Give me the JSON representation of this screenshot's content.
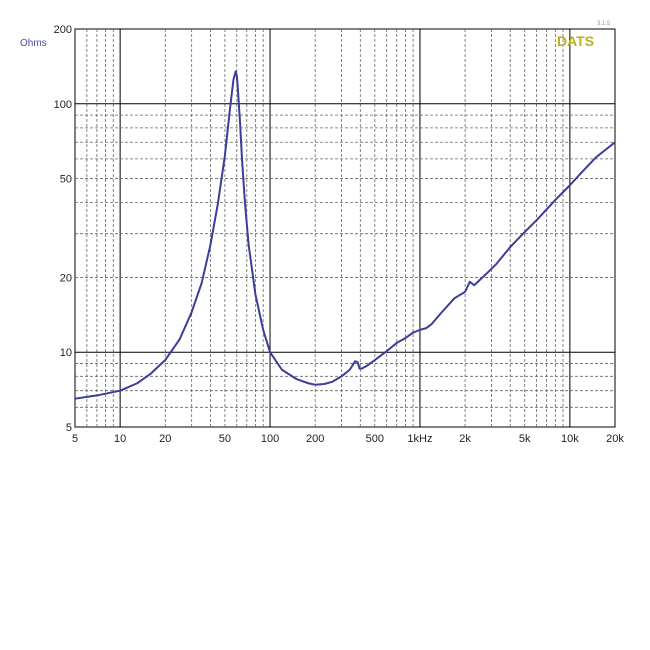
{
  "chart_data": {
    "type": "line",
    "title": "",
    "xlabel": "",
    "ylabel": "Ohms",
    "brand": "DATS",
    "version_mark": "3.1.5",
    "x_scale": "log",
    "y_scale": "log",
    "xlim": [
      5,
      20000
    ],
    "ylim": [
      5,
      200
    ],
    "grid": true,
    "x_ticks": [
      {
        "value": 5,
        "label": "5"
      },
      {
        "value": 10,
        "label": "10"
      },
      {
        "value": 20,
        "label": "20"
      },
      {
        "value": 50,
        "label": "50"
      },
      {
        "value": 100,
        "label": "100"
      },
      {
        "value": 200,
        "label": "200"
      },
      {
        "value": 500,
        "label": "500"
      },
      {
        "value": 1000,
        "label": "1kHz"
      },
      {
        "value": 2000,
        "label": "2k"
      },
      {
        "value": 5000,
        "label": "5k"
      },
      {
        "value": 10000,
        "label": "10k"
      },
      {
        "value": 20000,
        "label": "20k"
      }
    ],
    "y_ticks": [
      {
        "value": 5,
        "label": "5"
      },
      {
        "value": 10,
        "label": "10"
      },
      {
        "value": 20,
        "label": "20"
      },
      {
        "value": 50,
        "label": "50"
      },
      {
        "value": 100,
        "label": "100"
      },
      {
        "value": 200,
        "label": "200"
      }
    ],
    "line_color": "#3c3c9a",
    "series": [
      {
        "x": [
          5,
          7,
          10,
          13,
          16,
          20,
          25,
          30,
          35,
          40,
          45,
          50,
          54,
          57,
          59,
          60,
          61,
          63,
          65,
          68,
          72,
          80,
          90,
          100,
          120,
          150,
          180,
          200,
          230,
          260,
          300,
          340,
          370,
          385,
          395,
          410,
          440,
          500,
          600,
          700,
          800,
          900,
          1000,
          1100,
          1200,
          1400,
          1700,
          2000,
          2150,
          2300,
          2500,
          2800,
          3200,
          4000,
          5000,
          6000,
          8000,
          10000,
          12000,
          15000,
          20000
        ],
        "y": [
          6.5,
          6.7,
          7.0,
          7.5,
          8.2,
          9.3,
          11.3,
          14.5,
          19.0,
          27.0,
          40.0,
          62.0,
          95.0,
          125.0,
          135.0,
          130.0,
          115.0,
          85.0,
          60.0,
          40.0,
          27.0,
          17.0,
          12.3,
          10.0,
          8.5,
          7.8,
          7.5,
          7.4,
          7.45,
          7.6,
          8.0,
          8.5,
          9.2,
          9.1,
          8.6,
          8.6,
          8.8,
          9.3,
          10.1,
          10.9,
          11.4,
          12.0,
          12.3,
          12.5,
          13.0,
          14.5,
          16.5,
          17.5,
          19.2,
          18.6,
          19.5,
          20.8,
          22.5,
          26.5,
          30.5,
          34.0,
          41.0,
          47.0,
          53.0,
          61.0,
          70.0
        ]
      }
    ]
  }
}
